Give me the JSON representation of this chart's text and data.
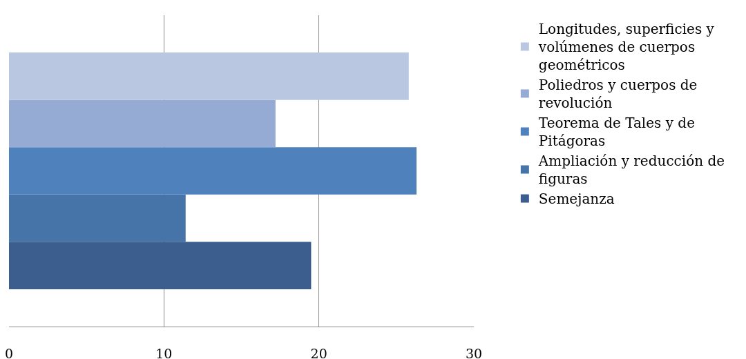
{
  "chart_data": {
    "type": "bar",
    "orientation": "horizontal",
    "categories": [
      null
    ],
    "series": [
      {
        "name": "Semejanza",
        "color": "#3b5e8e",
        "values": [
          19.5
        ]
      },
      {
        "name": "Ampliación y reducción de figuras",
        "color": "#4674a8",
        "values": [
          11.4
        ]
      },
      {
        "name": "Teorema de Tales y de Pitágoras",
        "color": "#4f81bd",
        "values": [
          26.3
        ]
      },
      {
        "name": "Poliedros y cuerpos de revolución",
        "color": "#95abd3",
        "values": [
          17.2
        ]
      },
      {
        "name": "Longitudes, superficies y volúmenes de cuerpos geométricos",
        "color": "#b9c7e0",
        "values": [
          25.8
        ]
      }
    ],
    "xlim": [
      0,
      30
    ],
    "xticks": [
      0,
      10,
      20,
      30
    ],
    "grid": "x",
    "legend": "right"
  }
}
